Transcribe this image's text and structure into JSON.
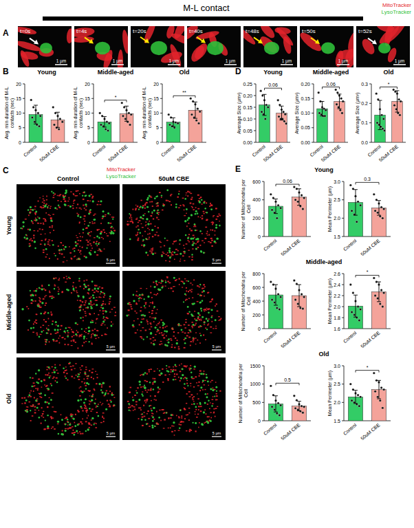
{
  "header": {
    "title": "M-L contact",
    "channels": [
      {
        "name": "MitoTracker",
        "color": "#e3232b"
      },
      {
        "name": "LysoTracker",
        "color": "#2fbf3a"
      }
    ]
  },
  "panel_a": {
    "letter": "A",
    "frames": [
      "t=0s",
      "t=4s",
      "t=20s",
      "t=40s",
      "t=48s",
      "t=50s",
      "t=52s"
    ],
    "scale_bar": "1 µm"
  },
  "panel_b": {
    "letter": "B"
  },
  "panel_c": {
    "letter": "C",
    "columns": [
      "Control",
      "50uM CBE"
    ],
    "rows": [
      "Young",
      "Middle-aged",
      "Old"
    ],
    "scale_bar": "5 µm"
  },
  "panel_d": {
    "letter": "D"
  },
  "panel_e": {
    "letter": "E",
    "row_titles": [
      "Young",
      "Middle-aged",
      "Old"
    ]
  },
  "chart_data": [
    {
      "type": "bar",
      "title": "Young",
      "y_label": "Avg. min duration of M-L contacts (sec)",
      "categories": [
        "Control",
        "50uM CBE"
      ],
      "colors": [
        "#33cc66",
        "#f4a39a"
      ],
      "values": [
        9.5,
        7.7
      ],
      "errors": [
        3.2,
        2.6
      ],
      "points": [
        [
          14.5,
          12,
          11,
          10,
          9,
          8.5,
          7,
          6,
          5.5
        ],
        [
          12,
          10,
          9,
          8,
          7,
          6,
          5,
          4.5
        ]
      ],
      "ylim": [
        0,
        20
      ],
      "yticks": [
        0,
        5,
        10,
        15,
        20
      ]
    },
    {
      "type": "bar",
      "title": "Middle-aged",
      "y_label": "Avg. min duration of M-L contacts (sec)",
      "categories": [
        "Control",
        "50uM CBE"
      ],
      "colors": [
        "#33cc66",
        "#f4a39a"
      ],
      "values": [
        7.0,
        9.8
      ],
      "errors": [
        1.8,
        2.6
      ],
      "points": [
        [
          10,
          9,
          8,
          7,
          6.5,
          6,
          5.5,
          4.5,
          4
        ],
        [
          13.5,
          12,
          11,
          10,
          9.5,
          9,
          8,
          7,
          6
        ]
      ],
      "ylim": [
        0,
        20
      ],
      "yticks": [
        0,
        5,
        10,
        15,
        20
      ],
      "annotation": "*"
    },
    {
      "type": "bar",
      "title": "Old",
      "y_label": "Avg. min duration of M-L contacts (sec)",
      "categories": [
        "Control",
        "50uM CBE"
      ],
      "colors": [
        "#33cc66",
        "#f4a39a"
      ],
      "values": [
        6.9,
        11.0
      ],
      "errors": [
        1.5,
        2.8
      ],
      "points": [
        [
          9.5,
          8.5,
          7,
          6.8,
          6.5,
          6,
          5.5,
          5
        ],
        [
          15,
          14,
          13,
          11.5,
          10.5,
          9.5,
          8.5,
          7.5,
          6.5
        ]
      ],
      "ylim": [
        0,
        20
      ],
      "yticks": [
        0,
        5,
        10,
        15,
        20
      ],
      "annotation": "**"
    },
    {
      "type": "bar",
      "title": "Young",
      "y_label": "Average Size (µm²)",
      "categories": [
        "Control",
        "50uM CBE"
      ],
      "colors": [
        "#33cc66",
        "#f4a39a"
      ],
      "values": [
        0.16,
        0.125
      ],
      "errors": [
        0.045,
        0.03
      ],
      "points": [
        [
          0.22,
          0.2,
          0.18,
          0.16,
          0.15,
          0.13,
          0.12,
          0.1
        ],
        [
          0.18,
          0.16,
          0.14,
          0.13,
          0.12,
          0.11,
          0.1,
          0.1,
          0.09,
          0.08
        ]
      ],
      "ylim": [
        0,
        0.25
      ],
      "yticks": [
        {
          "value": 0,
          "label": "0.00"
        },
        0.05,
        {
          "value": 0.1,
          "label": "0.10"
        },
        0.15,
        {
          "value": 0.2,
          "label": "0.20"
        },
        0.25
      ],
      "annotation": "0.06"
    },
    {
      "type": "bar",
      "title": "Middle-aged",
      "y_label": "Average Size (µm²)",
      "categories": [
        "Control",
        "50uM CBE"
      ],
      "colors": [
        "#33cc66",
        "#f4a39a"
      ],
      "values": [
        0.115,
        0.14
      ],
      "errors": [
        0.025,
        0.025
      ],
      "points": [
        [
          0.17,
          0.14,
          0.12,
          0.115,
          0.11,
          0.1,
          0.095,
          0.09,
          0.09
        ],
        [
          0.18,
          0.17,
          0.16,
          0.15,
          0.14,
          0.13,
          0.12,
          0.11,
          0.1
        ]
      ],
      "ylim": [
        0,
        0.2
      ],
      "yticks": [
        {
          "value": 0,
          "label": "0.00"
        },
        0.05,
        {
          "value": 0.1,
          "label": "0.10"
        },
        0.15,
        {
          "value": 0.2,
          "label": "0.20"
        }
      ],
      "annotation": "0.06"
    },
    {
      "type": "bar",
      "title": "Old",
      "y_label": "Average Size (µm²)",
      "categories": [
        "Control",
        "50uM CBE"
      ],
      "colors": [
        "#33cc66",
        "#f4a39a"
      ],
      "values": [
        0.14,
        0.21
      ],
      "errors": [
        0.075,
        0.055
      ],
      "points": [
        [
          0.25,
          0.22,
          0.17,
          0.14,
          0.12,
          0.1,
          0.09,
          0.08,
          0.07,
          0.06
        ],
        [
          0.27,
          0.26,
          0.25,
          0.22,
          0.21,
          0.19,
          0.17,
          0.15,
          0.14
        ]
      ],
      "ylim": [
        0,
        0.3
      ],
      "yticks": [
        {
          "value": 0,
          "label": "0.0"
        },
        0.1,
        0.2,
        0.3
      ],
      "annotation": "*"
    },
    {
      "type": "bar",
      "y_label": "Number of Mitochondria per Cell",
      "categories": [
        "Control",
        "50uM CBE"
      ],
      "colors": [
        "#33cc66",
        "#f4a39a"
      ],
      "values": [
        330,
        430
      ],
      "errors": [
        80,
        90
      ],
      "points": [
        [
          460,
          420,
          380,
          340,
          310,
          290,
          260,
          200
        ],
        [
          540,
          520,
          480,
          450,
          420,
          400,
          380,
          330,
          300
        ]
      ],
      "ylim": [
        0,
        600
      ],
      "yticks": [
        0,
        200,
        400,
        600
      ],
      "annotation": "0.06"
    },
    {
      "type": "bar",
      "y_label": "Mean Perimeter (µm)",
      "categories": [
        "Control",
        "50uM CBE"
      ],
      "colors": [
        "#33cc66",
        "#f4a39a"
      ],
      "values": [
        2.43,
        2.28
      ],
      "errors": [
        0.35,
        0.2
      ],
      "points": [
        [
          2.9,
          2.8,
          2.6,
          2.45,
          2.35,
          2.2,
          2.1,
          1.9
        ],
        [
          2.65,
          2.5,
          2.4,
          2.3,
          2.25,
          2.2,
          2.15,
          2.05,
          2.0
        ]
      ],
      "ylim": [
        1.5,
        3.0
      ],
      "yticks": [
        1.5,
        {
          "value": 2,
          "label": "2.0"
        },
        2.5,
        {
          "value": 3,
          "label": "3.0"
        }
      ],
      "annotation": "0.3"
    },
    {
      "type": "bar",
      "y_label": "Number of Mitochondria per Cell",
      "categories": [
        "Control",
        "50uM CBE"
      ],
      "colors": [
        "#33cc66",
        "#f4a39a"
      ],
      "values": [
        490,
        480
      ],
      "errors": [
        150,
        160
      ],
      "points": [
        [
          680,
          640,
          580,
          500,
          460,
          420,
          380,
          300,
          280
        ],
        [
          700,
          650,
          560,
          500,
          460,
          420,
          360,
          300,
          290
        ]
      ],
      "ylim": [
        0,
        800
      ],
      "yticks": [
        0,
        200,
        400,
        600,
        800
      ]
    },
    {
      "type": "bar",
      "y_label": "Mean Perimeter (µm)",
      "categories": [
        "Control",
        "50uM CBE"
      ],
      "colors": [
        "#33cc66",
        "#f4a39a"
      ],
      "values": [
        2.01,
        2.27
      ],
      "errors": [
        0.2,
        0.18
      ],
      "points": [
        [
          2.4,
          2.25,
          2.1,
          2.0,
          1.95,
          1.9,
          1.85,
          1.8,
          1.75
        ],
        [
          2.52,
          2.45,
          2.4,
          2.3,
          2.25,
          2.2,
          2.15,
          2.05,
          2.0
        ]
      ],
      "ylim": [
        1.6,
        2.6
      ],
      "yticks": [
        1.6,
        1.8,
        {
          "value": 2,
          "label": "2.0"
        },
        2.2,
        2.4,
        2.6
      ],
      "annotation": "*"
    },
    {
      "type": "bar",
      "y_label": "Number of Mitochondria per Cell",
      "categories": [
        "Control",
        "50uM CBE"
      ],
      "colors": [
        "#33cc66",
        "#f4a39a"
      ],
      "values": [
        460,
        400
      ],
      "errors": [
        220,
        130
      ],
      "points": [
        [
          950,
          700,
          550,
          480,
          420,
          380,
          300,
          200,
          150
        ],
        [
          680,
          560,
          450,
          400,
          380,
          340,
          300,
          260,
          220
        ]
      ],
      "ylim": [
        0,
        1500
      ],
      "yticks": [
        0,
        500,
        1000,
        1500
      ],
      "annotation": "0.5"
    },
    {
      "type": "bar",
      "y_label": "Mean Perimeter (µm)",
      "categories": [
        "Control",
        "50uM CBE"
      ],
      "colors": [
        "#33cc66",
        "#f4a39a"
      ],
      "values": [
        2.15,
        2.35
      ],
      "errors": [
        0.18,
        0.25
      ],
      "points": [
        [
          2.5,
          2.35,
          2.25,
          2.2,
          2.15,
          2.05,
          2.0,
          1.95,
          1.9
        ],
        [
          2.8,
          2.6,
          2.55,
          2.4,
          2.35,
          2.3,
          2.15,
          2.05,
          1.85
        ]
      ],
      "ylim": [
        1.5,
        3.0
      ],
      "yticks": [
        1.5,
        {
          "value": 2,
          "label": "2.0"
        },
        2.5,
        {
          "value": 3,
          "label": "3.0"
        }
      ],
      "annotation": "*"
    }
  ]
}
